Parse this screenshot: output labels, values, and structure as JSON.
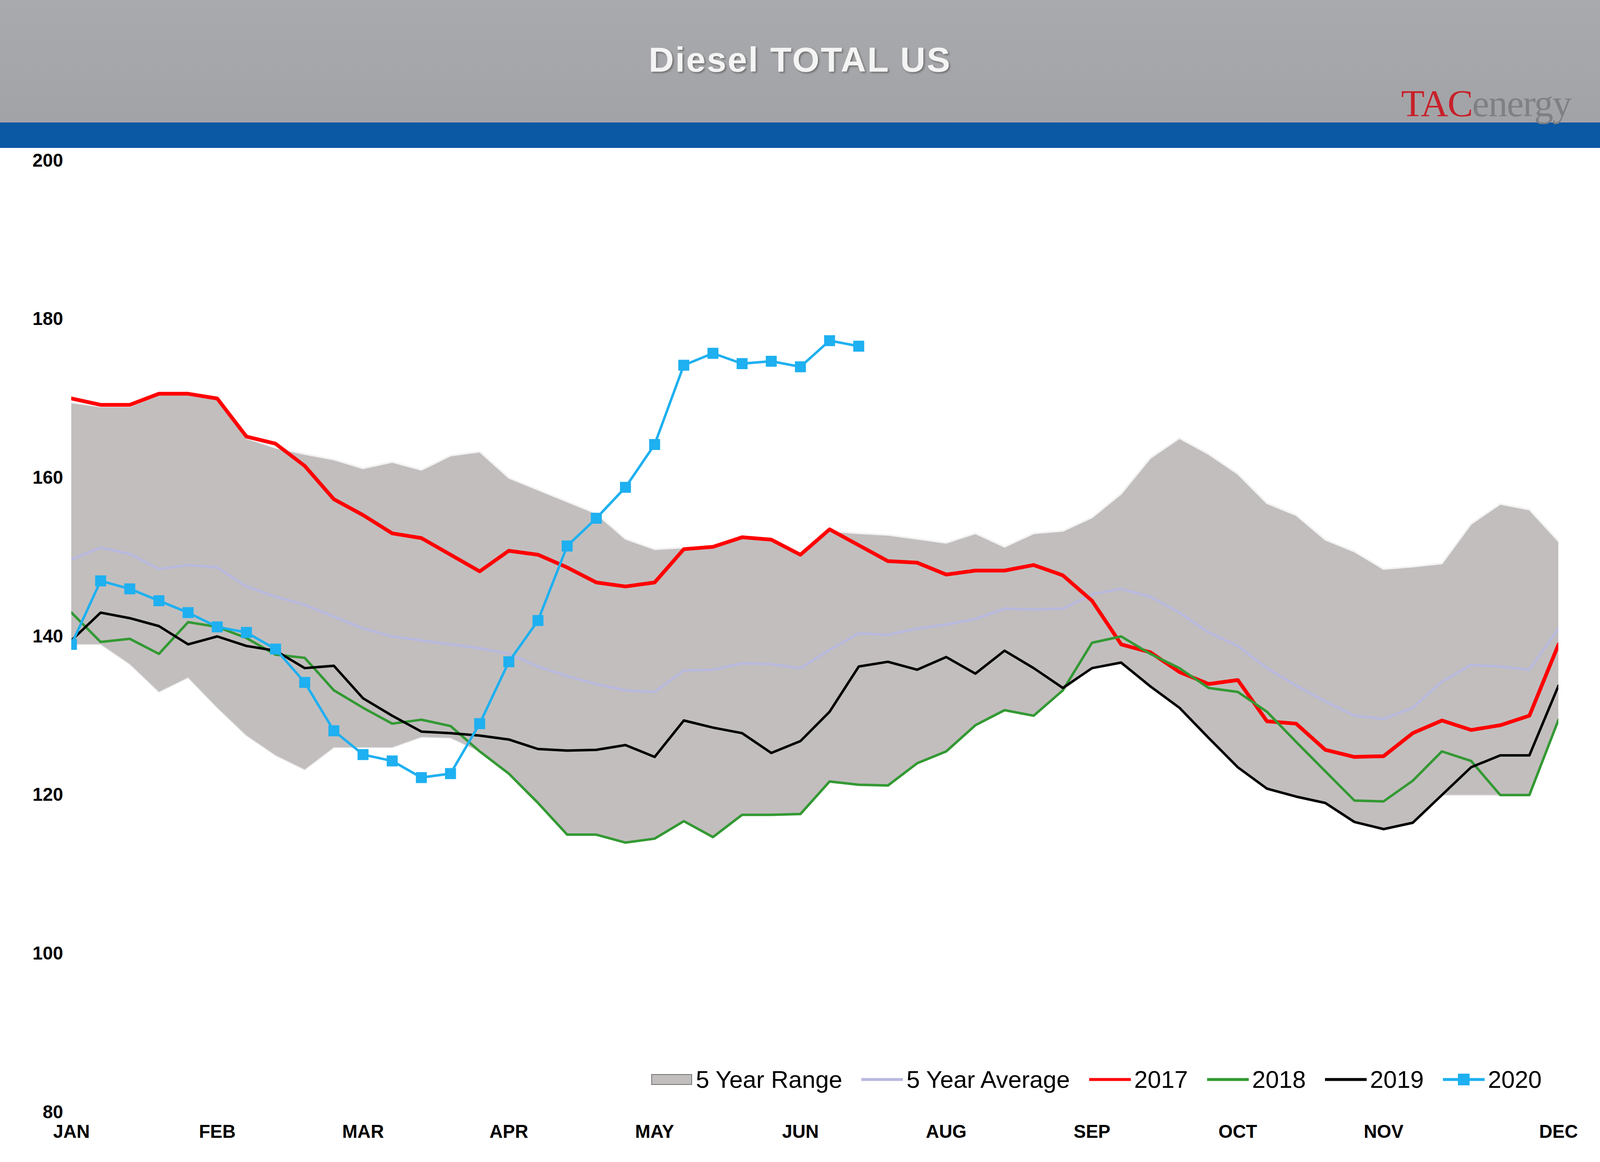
{
  "chart_data": {
    "type": "line",
    "title": "Diesel TOTAL US",
    "annotations": [
      "TACenergy"
    ],
    "x": [
      1,
      2,
      3,
      4,
      5,
      6,
      7,
      8,
      9,
      10,
      11,
      12,
      13,
      14,
      15,
      16,
      17,
      18,
      19,
      20,
      21,
      22,
      23,
      24,
      25,
      26,
      27,
      28,
      29,
      30,
      31,
      32,
      33,
      34,
      35,
      36,
      37,
      38,
      39,
      40,
      41,
      42,
      43,
      44,
      45,
      46,
      47,
      48,
      49,
      50,
      51,
      52
    ],
    "xlim": [
      1,
      52
    ],
    "xticks": [
      {
        "value": 1,
        "label": "JAN"
      },
      {
        "value": 6,
        "label": "FEB"
      },
      {
        "value": 11,
        "label": "MAR"
      },
      {
        "value": 16,
        "label": "APR"
      },
      {
        "value": 21,
        "label": "MAY"
      },
      {
        "value": 26,
        "label": "JUN"
      },
      {
        "value": 31,
        "label": "AUG"
      },
      {
        "value": 36,
        "label": "SEP"
      },
      {
        "value": 41,
        "label": "OCT"
      },
      {
        "value": 46,
        "label": "NOV"
      },
      {
        "value": 52,
        "label": "DEC"
      }
    ],
    "ylim": [
      80,
      200
    ],
    "yticks": [
      80,
      100,
      120,
      140,
      160,
      180,
      200
    ],
    "grid": false,
    "legend": "bottom-right",
    "series": [
      {
        "name": "5 Year Range",
        "type": "area",
        "color": "#c2bebe",
        "low": [
          139,
          139,
          136.5,
          133,
          134.8,
          131,
          127.5,
          125,
          123.2,
          126,
          126,
          126,
          127.3,
          127.2,
          125.5,
          122.7,
          119,
          115,
          115,
          114,
          114.5,
          116.7,
          114.7,
          117.5,
          117.5,
          117.6,
          121.7,
          121.3,
          121.2,
          124,
          125.5,
          128.8,
          130.7,
          130,
          133.2,
          136,
          136.7,
          133.7,
          131,
          127.2,
          123.5,
          120.8,
          119.8,
          119,
          116.6,
          115.7,
          116.5,
          120,
          120,
          120,
          120,
          129.5
        ],
        "high": [
          169.5,
          169,
          169,
          170.5,
          170.5,
          170,
          165,
          163.8,
          163,
          162.3,
          161.2,
          162,
          161,
          162.8,
          163.3,
          160,
          158.5,
          157,
          155.5,
          152.3,
          151,
          151.2,
          151.3,
          152.5,
          152.2,
          150.3,
          153.3,
          153,
          152.8,
          152.3,
          151.8,
          153,
          151.3,
          153,
          153.3,
          155,
          158,
          162.5,
          165,
          163,
          160.5,
          156.8,
          155.3,
          152.2,
          150.7,
          148.5,
          148.8,
          149.2,
          154.2,
          156.7,
          156,
          152
        ]
      },
      {
        "name": "5 Year Average",
        "type": "line",
        "color": "#b9b9de",
        "values": [
          149.7,
          151.2,
          150.4,
          148.5,
          149,
          148.7,
          146.3,
          145,
          144,
          142.5,
          141,
          140,
          139.5,
          139,
          138.5,
          137.8,
          136.2,
          135,
          134,
          133.2,
          133,
          135.7,
          135.8,
          136.6,
          136.5,
          136,
          138.3,
          140.4,
          140.2,
          141,
          141.5,
          142.2,
          143.5,
          143.4,
          143.5,
          145.3,
          146,
          145,
          143,
          140.5,
          138.8,
          136,
          133.8,
          131.8,
          130,
          129.6,
          131,
          134.3,
          136.4,
          136.2,
          135.8,
          141
        ]
      },
      {
        "name": "2017",
        "type": "line",
        "color": "#ff0000",
        "values": [
          170,
          169.2,
          169.2,
          170.6,
          170.6,
          170,
          165.2,
          164.3,
          161.5,
          157.3,
          155.3,
          153,
          152.4,
          150.3,
          148.2,
          150.8,
          150.3,
          148.7,
          146.8,
          146.3,
          146.8,
          151,
          151.3,
          152.5,
          152.2,
          150.3,
          153.5,
          151.5,
          149.5,
          149.3,
          147.8,
          148.3,
          148.3,
          149,
          147.7,
          144.5,
          139,
          138,
          135.5,
          134,
          134.5,
          129.3,
          129,
          125.7,
          124.8,
          124.9,
          127.8,
          129.4,
          128.2,
          128.8,
          130,
          139
        ]
      },
      {
        "name": "2018",
        "type": "line",
        "color": "#339933",
        "values": [
          143,
          139.3,
          139.7,
          137.8,
          141.8,
          141.2,
          139.8,
          137.7,
          137.3,
          133.2,
          131,
          129,
          129.5,
          128.7,
          125.5,
          122.7,
          119,
          115,
          115,
          114,
          114.5,
          116.7,
          114.7,
          117.5,
          117.5,
          117.6,
          121.7,
          121.3,
          121.2,
          124,
          125.5,
          128.8,
          130.7,
          130,
          133.2,
          139.2,
          140,
          137.8,
          136,
          133.5,
          133,
          130.5,
          126.7,
          123,
          119.3,
          119.2,
          121.8,
          125.5,
          124.3,
          120,
          120,
          129.5
        ]
      },
      {
        "name": "2019",
        "type": "line",
        "color": "#000000",
        "values": [
          139.5,
          143,
          142.3,
          141.3,
          139,
          140,
          138.8,
          138.2,
          136,
          136.3,
          132.2,
          130,
          128,
          127.8,
          127.5,
          127,
          125.8,
          125.6,
          125.7,
          126.3,
          124.8,
          129.4,
          128.5,
          127.8,
          125.3,
          126.8,
          130.5,
          136.2,
          136.8,
          135.8,
          137.4,
          135.3,
          138.2,
          136,
          133.5,
          136,
          136.7,
          133.7,
          131,
          127.2,
          123.5,
          120.8,
          119.8,
          119,
          116.6,
          115.7,
          116.5,
          120,
          123.5,
          125,
          125,
          133.8
        ]
      },
      {
        "name": "2020",
        "type": "line",
        "color": "#1eb0f0",
        "marker": "square",
        "values": [
          139,
          147,
          146,
          144.5,
          143,
          141.2,
          140.5,
          138.4,
          134.2,
          128.1,
          125.1,
          124.3,
          122.2,
          122.7,
          129,
          136.8,
          142,
          151.4,
          154.9,
          158.8,
          164.2,
          174.2,
          175.7,
          174.4,
          174.7,
          174,
          177.3,
          176.6,
          null,
          null,
          null,
          null,
          null,
          null,
          null,
          null,
          null,
          null,
          null,
          null,
          null,
          null,
          null,
          null,
          null,
          null,
          null,
          null,
          null,
          null,
          null,
          null
        ]
      }
    ]
  }
}
